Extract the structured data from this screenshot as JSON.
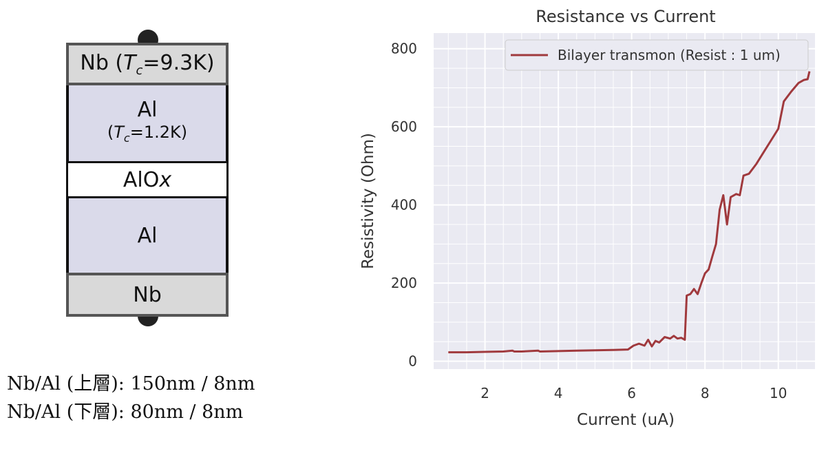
{
  "stack": {
    "top_nb": {
      "symbol": "Nb",
      "paren_open": " (",
      "t": "T",
      "t_sub": "c",
      "equals": "=",
      "value": "9.3K",
      "paren_close": ")"
    },
    "al_top": {
      "label": "Al",
      "paren_open": "(",
      "t": "T",
      "t_sub": "c",
      "equals": "=",
      "value": "1.2K",
      "paren_close": ")"
    },
    "alox": {
      "prefix": "AlO",
      "suffix": "x"
    },
    "al_bottom": {
      "label": "Al"
    },
    "bottom_nb": {
      "label": "Nb"
    },
    "colors": {
      "nb_fill": "#d9d9d9",
      "al_fill": "#dadaea",
      "alox_fill": "#ffffff",
      "border": "#555555"
    }
  },
  "captions": [
    "Nb/Al (上層): 150nm / 8nm",
    "Nb/Al (下層): 80nm / 8nm"
  ],
  "chart_data": {
    "type": "line",
    "title": "Resistance vs Current",
    "xlabel": "Current (uA)",
    "ylabel": "Resistivity (Ohm)",
    "xlim": [
      0.6,
      11.0
    ],
    "ylim": [
      -20,
      840
    ],
    "xticks": [
      2,
      4,
      6,
      8,
      10
    ],
    "yticks": [
      0,
      200,
      400,
      600,
      800
    ],
    "grid": true,
    "legend_position": "top-right",
    "background": "#eaeaf2",
    "series": [
      {
        "name": "Bilayer transmon (Resist : 1 um)",
        "color": "#a0393d",
        "x": [
          1.0,
          1.5,
          2.0,
          2.5,
          2.75,
          2.8,
          3.0,
          3.45,
          3.5,
          4.0,
          4.5,
          5.0,
          5.5,
          5.9,
          6.05,
          6.2,
          6.35,
          6.45,
          6.55,
          6.65,
          6.75,
          6.9,
          7.05,
          7.15,
          7.25,
          7.35,
          7.45,
          7.5,
          7.6,
          7.7,
          7.8,
          7.9,
          8.0,
          8.1,
          8.2,
          8.3,
          8.4,
          8.5,
          8.6,
          8.7,
          8.85,
          8.95,
          9.05,
          9.2,
          9.4,
          9.6,
          9.8,
          10.0,
          10.15,
          10.35,
          10.55,
          10.7,
          10.8,
          10.85
        ],
        "values": [
          23,
          23,
          24,
          25,
          27,
          25,
          25,
          27,
          25,
          26,
          27,
          28,
          29,
          30,
          40,
          45,
          40,
          55,
          38,
          52,
          48,
          62,
          58,
          65,
          58,
          60,
          55,
          168,
          172,
          185,
          172,
          200,
          225,
          235,
          268,
          300,
          388,
          425,
          350,
          420,
          428,
          425,
          475,
          480,
          505,
          535,
          565,
          595,
          665,
          690,
          712,
          720,
          722,
          742
        ]
      }
    ]
  }
}
